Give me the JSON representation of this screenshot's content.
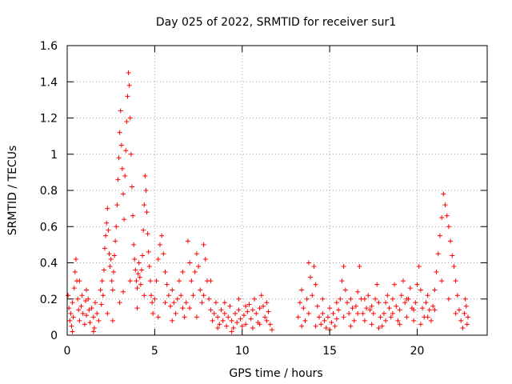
{
  "chart_data": {
    "type": "scatter",
    "title": "Day 025 of 2022, SRMTID for receiver sur1",
    "xlabel": "GPS time / hours",
    "ylabel": "SRMTID / TECUs",
    "xlim": [
      0,
      24
    ],
    "ylim": [
      0,
      1.6
    ],
    "x_ticks": [
      0,
      5,
      10,
      15,
      20
    ],
    "x_tick_labels": [
      "0",
      "5",
      "10",
      "15",
      "20"
    ],
    "y_ticks": [
      0,
      0.2,
      0.4,
      0.6,
      0.8,
      1,
      1.2,
      1.4,
      1.6
    ],
    "y_tick_labels": [
      "0",
      "0.2",
      "0.4",
      "0.6",
      "0.8",
      "1",
      "1.2",
      "1.4",
      "1.6"
    ],
    "grid": true,
    "marker": "+",
    "series": [
      {
        "name": "sur1",
        "color": "#ff0000",
        "points": [
          [
            0.05,
            0.22
          ],
          [
            0.1,
            0.15
          ],
          [
            0.15,
            0.08
          ],
          [
            0.2,
            0.12
          ],
          [
            0.25,
            0.05
          ],
          [
            0.3,
            0.18
          ],
          [
            0.35,
            0.1
          ],
          [
            0.4,
            0.26
          ],
          [
            0.45,
            0.35
          ],
          [
            0.5,
            0.42
          ],
          [
            0.55,
            0.3
          ],
          [
            0.6,
            0.2
          ],
          [
            0.65,
            0.14
          ],
          [
            0.7,
            0.08
          ],
          [
            0.8,
            0.16
          ],
          [
            0.85,
            0.22
          ],
          [
            0.9,
            0.12
          ],
          [
            1.0,
            0.06
          ],
          [
            1.05,
            0.19
          ],
          [
            1.1,
            0.11
          ],
          [
            1.2,
            0.2
          ],
          [
            1.25,
            0.14
          ],
          [
            1.3,
            0.07
          ],
          [
            1.4,
            0.15
          ],
          [
            1.5,
            0.1
          ],
          [
            1.55,
            0.04
          ],
          [
            1.6,
            0.18
          ],
          [
            1.7,
            0.12
          ],
          [
            1.8,
            0.08
          ],
          [
            1.9,
            0.25
          ],
          [
            1.95,
            0.17
          ],
          [
            2.0,
            0.3
          ],
          [
            2.05,
            0.22
          ],
          [
            2.1,
            0.36
          ],
          [
            2.15,
            0.48
          ],
          [
            2.2,
            0.55
          ],
          [
            2.25,
            0.62
          ],
          [
            2.3,
            0.7
          ],
          [
            2.35,
            0.58
          ],
          [
            2.4,
            0.45
          ],
          [
            2.45,
            0.38
          ],
          [
            2.5,
            0.42
          ],
          [
            2.55,
            0.3
          ],
          [
            2.6,
            0.25
          ],
          [
            2.65,
            0.35
          ],
          [
            2.7,
            0.44
          ],
          [
            2.75,
            0.52
          ],
          [
            2.8,
            0.6
          ],
          [
            2.85,
            0.72
          ],
          [
            2.9,
            0.86
          ],
          [
            2.95,
            0.98
          ],
          [
            3.0,
            1.12
          ],
          [
            3.05,
            1.24
          ],
          [
            3.1,
            1.05
          ],
          [
            3.15,
            0.92
          ],
          [
            3.2,
            0.78
          ],
          [
            3.25,
            0.64
          ],
          [
            3.3,
            0.88
          ],
          [
            3.35,
            1.02
          ],
          [
            3.4,
            1.18
          ],
          [
            3.45,
            1.32
          ],
          [
            3.5,
            1.45
          ],
          [
            3.55,
            1.38
          ],
          [
            3.6,
            1.2
          ],
          [
            3.65,
            1.0
          ],
          [
            3.7,
            0.82
          ],
          [
            3.75,
            0.66
          ],
          [
            3.8,
            0.5
          ],
          [
            3.85,
            0.42
          ],
          [
            3.9,
            0.36
          ],
          [
            3.95,
            0.3
          ],
          [
            4.0,
            0.26
          ],
          [
            4.05,
            0.34
          ],
          [
            4.1,
            0.4
          ],
          [
            4.15,
            0.32
          ],
          [
            4.2,
            0.28
          ],
          [
            4.25,
            0.36
          ],
          [
            4.3,
            0.44
          ],
          [
            4.35,
            0.58
          ],
          [
            4.4,
            0.72
          ],
          [
            4.45,
            0.88
          ],
          [
            4.5,
            0.8
          ],
          [
            4.55,
            0.68
          ],
          [
            4.6,
            0.56
          ],
          [
            4.65,
            0.46
          ],
          [
            4.7,
            0.38
          ],
          [
            4.75,
            0.3
          ],
          [
            4.8,
            0.22
          ],
          [
            4.85,
            0.18
          ],
          [
            4.9,
            0.12
          ],
          [
            5.0,
            0.2
          ],
          [
            5.1,
            0.3
          ],
          [
            5.2,
            0.42
          ],
          [
            5.3,
            0.5
          ],
          [
            5.4,
            0.55
          ],
          [
            5.5,
            0.45
          ],
          [
            5.6,
            0.35
          ],
          [
            5.7,
            0.28
          ],
          [
            5.8,
            0.22
          ],
          [
            5.9,
            0.16
          ],
          [
            6.0,
            0.25
          ],
          [
            6.1,
            0.18
          ],
          [
            6.2,
            0.12
          ],
          [
            6.3,
            0.2
          ],
          [
            6.4,
            0.3
          ],
          [
            6.5,
            0.22
          ],
          [
            6.6,
            0.15
          ],
          [
            6.7,
            0.1
          ],
          [
            6.8,
            0.18
          ],
          [
            6.9,
            0.52
          ],
          [
            7.0,
            0.4
          ],
          [
            7.1,
            0.3
          ],
          [
            7.2,
            0.22
          ],
          [
            7.3,
            0.35
          ],
          [
            7.4,
            0.45
          ],
          [
            7.5,
            0.38
          ],
          [
            7.6,
            0.25
          ],
          [
            7.7,
            0.18
          ],
          [
            7.8,
            0.5
          ],
          [
            7.9,
            0.42
          ],
          [
            8.0,
            0.3
          ],
          [
            8.1,
            0.2
          ],
          [
            8.2,
            0.14
          ],
          [
            8.3,
            0.08
          ],
          [
            8.4,
            0.12
          ],
          [
            8.5,
            0.18
          ],
          [
            8.6,
            0.1
          ],
          [
            8.7,
            0.06
          ],
          [
            8.8,
            0.14
          ],
          [
            8.9,
            0.08
          ],
          [
            9.0,
            0.12
          ],
          [
            9.1,
            0.05
          ],
          [
            9.2,
            0.1
          ],
          [
            9.3,
            0.16
          ],
          [
            9.4,
            0.08
          ],
          [
            9.5,
            0.04
          ],
          [
            9.6,
            0.12
          ],
          [
            9.7,
            0.07
          ],
          [
            9.8,
            0.14
          ],
          [
            9.9,
            0.09
          ],
          [
            10.0,
            0.05
          ],
          [
            10.1,
            0.11
          ],
          [
            10.2,
            0.06
          ],
          [
            10.3,
            0.13
          ],
          [
            10.4,
            0.17
          ],
          [
            10.5,
            0.09
          ],
          [
            10.6,
            0.14
          ],
          [
            10.7,
            0.2
          ],
          [
            10.8,
            0.12
          ],
          [
            10.9,
            0.07
          ],
          [
            11.0,
            0.15
          ],
          [
            11.1,
            0.22
          ],
          [
            11.2,
            0.16
          ],
          [
            11.3,
            0.1
          ],
          [
            11.4,
            0.08
          ],
          [
            11.5,
            0.13
          ],
          [
            11.6,
            0.06
          ],
          [
            11.7,
            0.03
          ],
          [
            13.2,
            0.1
          ],
          [
            13.3,
            0.18
          ],
          [
            13.4,
            0.25
          ],
          [
            13.5,
            0.15
          ],
          [
            13.6,
            0.08
          ],
          [
            13.7,
            0.2
          ],
          [
            13.8,
            0.4
          ],
          [
            13.9,
            0.32
          ],
          [
            14.0,
            0.22
          ],
          [
            14.1,
            0.38
          ],
          [
            14.2,
            0.28
          ],
          [
            14.3,
            0.16
          ],
          [
            14.4,
            0.1
          ],
          [
            14.5,
            0.06
          ],
          [
            14.6,
            0.12
          ],
          [
            14.7,
            0.08
          ],
          [
            14.8,
            0.04
          ],
          [
            14.9,
            0.1
          ],
          [
            15.0,
            0.15
          ],
          [
            15.1,
            0.07
          ],
          [
            15.2,
            0.12
          ],
          [
            15.3,
            0.05
          ],
          [
            15.4,
            0.09
          ],
          [
            15.5,
            0.14
          ],
          [
            15.6,
            0.2
          ],
          [
            15.7,
            0.3
          ],
          [
            15.8,
            0.38
          ],
          [
            15.9,
            0.25
          ],
          [
            16.0,
            0.18
          ],
          [
            16.1,
            0.12
          ],
          [
            16.2,
            0.2
          ],
          [
            16.3,
            0.15
          ],
          [
            16.4,
            0.08
          ],
          [
            16.5,
            0.16
          ],
          [
            16.6,
            0.24
          ],
          [
            16.7,
            0.38
          ],
          [
            16.8,
            0.2
          ],
          [
            16.9,
            0.12
          ],
          [
            17.0,
            0.08
          ],
          [
            17.1,
            0.15
          ],
          [
            17.2,
            0.22
          ],
          [
            17.3,
            0.14
          ],
          [
            17.4,
            0.06
          ],
          [
            17.5,
            0.12
          ],
          [
            17.6,
            0.2
          ],
          [
            17.7,
            0.28
          ],
          [
            17.8,
            0.18
          ],
          [
            17.9,
            0.1
          ],
          [
            18.0,
            0.05
          ],
          [
            18.1,
            0.12
          ],
          [
            18.2,
            0.18
          ],
          [
            18.3,
            0.22
          ],
          [
            18.4,
            0.15
          ],
          [
            18.5,
            0.1
          ],
          [
            18.6,
            0.2
          ],
          [
            18.7,
            0.28
          ],
          [
            18.8,
            0.16
          ],
          [
            18.9,
            0.08
          ],
          [
            19.0,
            0.14
          ],
          [
            19.1,
            0.22
          ],
          [
            19.2,
            0.3
          ],
          [
            19.3,
            0.18
          ],
          [
            19.4,
            0.1
          ],
          [
            19.5,
            0.2
          ],
          [
            19.6,
            0.26
          ],
          [
            19.7,
            0.15
          ],
          [
            19.8,
            0.08
          ],
          [
            19.9,
            0.18
          ],
          [
            20.0,
            0.28
          ],
          [
            20.1,
            0.38
          ],
          [
            20.2,
            0.25
          ],
          [
            20.3,
            0.15
          ],
          [
            20.4,
            0.1
          ],
          [
            20.5,
            0.18
          ],
          [
            20.6,
            0.22
          ],
          [
            20.7,
            0.14
          ],
          [
            20.8,
            0.08
          ],
          [
            20.9,
            0.16
          ],
          [
            21.0,
            0.25
          ],
          [
            21.1,
            0.35
          ],
          [
            21.2,
            0.45
          ],
          [
            21.3,
            0.55
          ],
          [
            21.4,
            0.65
          ],
          [
            21.5,
            0.78
          ],
          [
            21.6,
            0.72
          ],
          [
            21.7,
            0.66
          ],
          [
            21.8,
            0.6
          ],
          [
            21.9,
            0.52
          ],
          [
            22.0,
            0.44
          ],
          [
            22.1,
            0.38
          ],
          [
            22.2,
            0.3
          ],
          [
            22.3,
            0.22
          ],
          [
            22.4,
            0.14
          ],
          [
            22.5,
            0.08
          ],
          [
            22.6,
            0.04
          ],
          [
            22.7,
            0.12
          ],
          [
            22.75,
            0.2
          ],
          [
            22.8,
            0.16
          ],
          [
            22.85,
            0.06
          ],
          [
            22.9,
            0.1
          ],
          [
            2.3,
            0.12
          ],
          [
            2.6,
            0.08
          ],
          [
            3.0,
            0.18
          ],
          [
            3.2,
            0.24
          ],
          [
            3.6,
            0.3
          ],
          [
            4.0,
            0.15
          ],
          [
            4.4,
            0.22
          ],
          [
            5.2,
            0.1
          ],
          [
            5.6,
            0.18
          ],
          [
            6.0,
            0.08
          ],
          [
            6.6,
            0.35
          ],
          [
            7.0,
            0.15
          ],
          [
            7.4,
            0.1
          ],
          [
            7.8,
            0.22
          ],
          [
            8.2,
            0.3
          ],
          [
            8.6,
            0.04
          ],
          [
            9.0,
            0.18
          ],
          [
            9.4,
            0.02
          ],
          [
            9.8,
            0.2
          ],
          [
            10.2,
            0.16
          ],
          [
            10.6,
            0.04
          ],
          [
            11.0,
            0.06
          ],
          [
            11.4,
            0.18
          ],
          [
            13.4,
            0.05
          ],
          [
            13.8,
            0.12
          ],
          [
            14.2,
            0.05
          ],
          [
            14.6,
            0.2
          ],
          [
            15.0,
            0.03
          ],
          [
            15.4,
            0.18
          ],
          [
            15.8,
            0.1
          ],
          [
            16.2,
            0.05
          ],
          [
            16.6,
            0.12
          ],
          [
            17.0,
            0.2
          ],
          [
            17.4,
            0.16
          ],
          [
            17.8,
            0.04
          ],
          [
            18.2,
            0.08
          ],
          [
            18.6,
            0.12
          ],
          [
            19.0,
            0.06
          ],
          [
            19.4,
            0.2
          ],
          [
            19.8,
            0.14
          ],
          [
            20.2,
            0.06
          ],
          [
            20.6,
            0.1
          ],
          [
            21.0,
            0.14
          ],
          [
            21.4,
            0.3
          ],
          [
            21.8,
            0.2
          ],
          [
            22.2,
            0.12
          ],
          [
            0.3,
            0.02
          ],
          [
            0.7,
            0.3
          ],
          [
            1.1,
            0.25
          ],
          [
            1.5,
            0.02
          ]
        ]
      }
    ]
  }
}
